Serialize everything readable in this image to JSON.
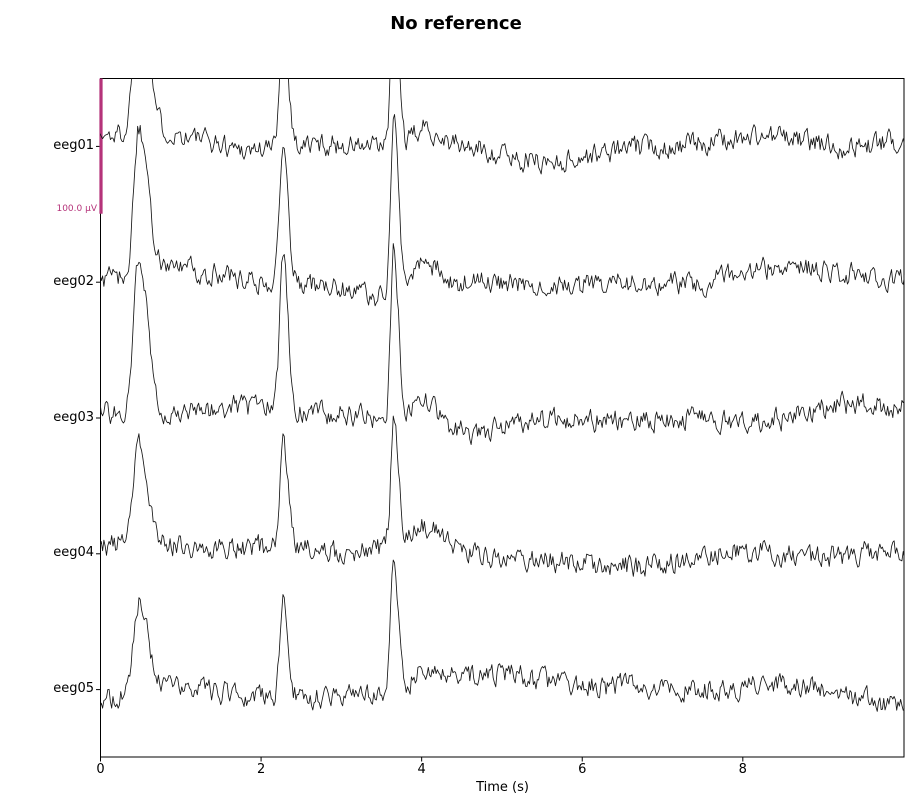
{
  "chart_data": {
    "type": "line",
    "title": "No reference",
    "xlabel": "Time (s)",
    "ylabel": "",
    "xlim": [
      0,
      10.02
    ],
    "xticks": [
      0,
      2,
      4,
      6,
      8
    ],
    "xtick_labels": [
      "0",
      "2",
      "4",
      "6",
      "8"
    ],
    "grid": false,
    "legend": null,
    "channels": [
      "eeg01",
      "eeg02",
      "eeg03",
      "eeg04",
      "eeg05"
    ],
    "channel_spacing_uv": 100,
    "duration_s": 10.02,
    "trace_color": "#161616",
    "scale_bar": {
      "label": "100.0 µV",
      "value_uv": 100.0,
      "color": "#b5337a"
    },
    "spikes": [
      {
        "t0": 0.48,
        "rise": 0.06,
        "fall": 0.115,
        "amps_uv": [
          125,
          108,
          118,
          76,
          70
        ]
      },
      {
        "t0": 2.28,
        "rise": 0.042,
        "fall": 0.062,
        "amps_uv": [
          98,
          108,
          112,
          78,
          74
        ]
      },
      {
        "t0": 3.66,
        "rise": 0.038,
        "fall": 0.058,
        "amps_uv": [
          118,
          132,
          128,
          92,
          98
        ]
      },
      {
        "t0": 4.03,
        "rise": 0.12,
        "fall": 0.2,
        "amps_uv": [
          14,
          22,
          20,
          12,
          14
        ]
      }
    ],
    "noise_sigma_uv": 5.0,
    "drift_uv": 6.5,
    "seed": 1337
  }
}
